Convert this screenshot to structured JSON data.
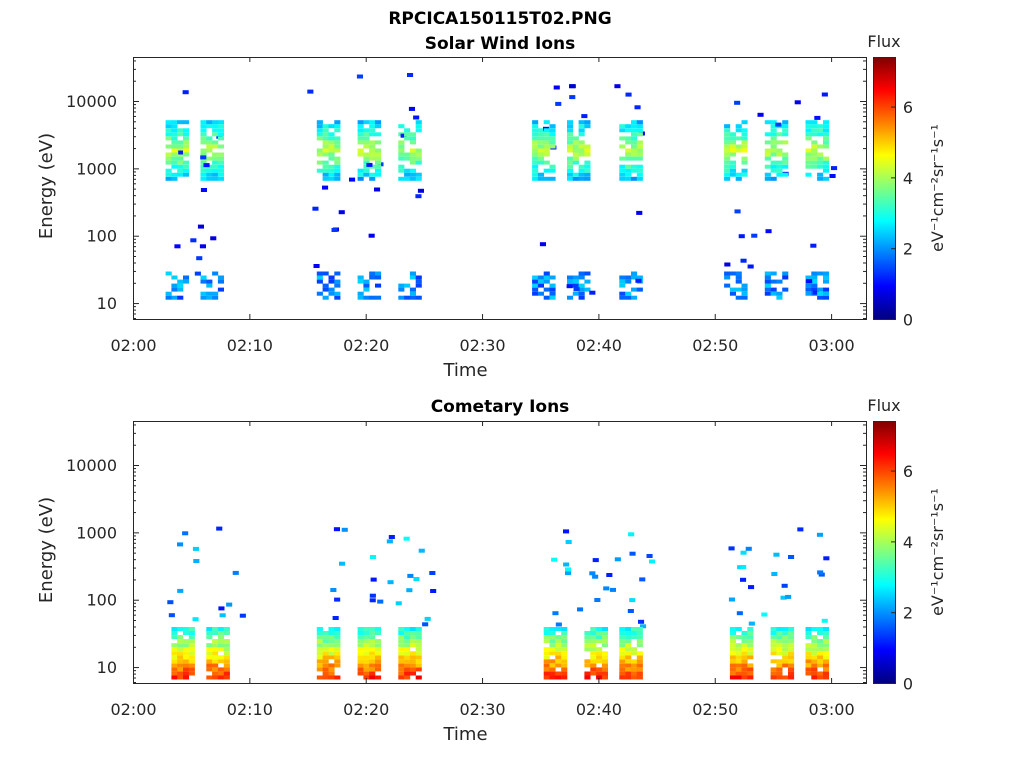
{
  "figure_title": "RPCICA150115T02.PNG",
  "colorbar_title": "Flux",
  "colorbar_label": "eV⁻¹cm⁻²sr⁻¹s⁻¹",
  "colormap": [
    "#00007f",
    "#0000ff",
    "#007fff",
    "#00ffff",
    "#7fff7f",
    "#ffff00",
    "#ff7f00",
    "#ff0000",
    "#7f0000"
  ],
  "chart_data": [
    {
      "type": "heatmap",
      "title": "Solar Wind Ions",
      "xlabel": "Time",
      "ylabel": "Energy (eV)",
      "x_ticks": [
        "02:00",
        "02:10",
        "02:20",
        "02:30",
        "02:40",
        "02:50",
        "03:00"
      ],
      "x_range_min": [
        0,
        63
      ],
      "y_ticks": [
        "10",
        "100",
        "1000",
        "10000"
      ],
      "y_scale": "log",
      "y_range_eV": [
        5.8,
        45000
      ],
      "colorbar_ticks": [
        0,
        2,
        4,
        6
      ],
      "colorbar_range": [
        0,
        7.4
      ],
      "bursts_start_min": [
        2.8,
        5.8,
        15.8,
        19.3,
        22.8,
        34.3,
        37.3,
        41.8,
        50.8,
        54.3,
        57.8
      ],
      "main_band_eV": [
        700,
        5000
      ],
      "low_band_eV": [
        12,
        28
      ],
      "main_band_flux": 3.8,
      "low_band_flux": 1.3
    },
    {
      "type": "heatmap",
      "title": "Cometary Ions",
      "xlabel": "Time",
      "ylabel": "Energy (eV)",
      "x_ticks": [
        "02:00",
        "02:10",
        "02:20",
        "02:30",
        "02:40",
        "02:50",
        "03:00"
      ],
      "x_range_min": [
        0,
        63
      ],
      "y_ticks": [
        "10",
        "100",
        "1000",
        "10000"
      ],
      "y_scale": "log",
      "y_range_eV": [
        5.8,
        45000
      ],
      "colorbar_ticks": [
        0,
        2,
        4,
        6
      ],
      "colorbar_range": [
        0,
        7.4
      ],
      "bursts_start_min": [
        3.3,
        6.3,
        15.8,
        19.3,
        22.8,
        35.3,
        38.8,
        41.8,
        51.3,
        54.8,
        57.8
      ],
      "core_band_eV": [
        7,
        40
      ],
      "core_peak_flux": 6.2,
      "scatter_band_eV": [
        40,
        1200
      ],
      "scatter_flux": 2.6
    }
  ]
}
